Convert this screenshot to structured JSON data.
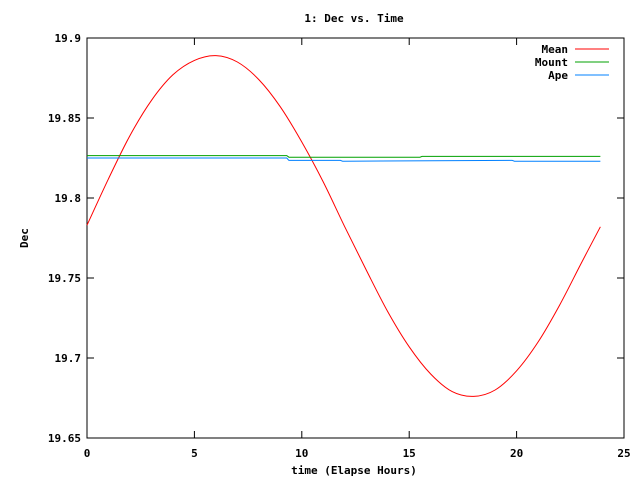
{
  "chart_data": {
    "type": "line",
    "title": "1: Dec vs. Time",
    "xlabel": "time (Elapse Hours)",
    "ylabel": "Dec",
    "xlim": [
      0,
      25
    ],
    "ylim": [
      19.65,
      19.9
    ],
    "xticks": [
      0,
      5,
      10,
      15,
      20,
      25
    ],
    "xtick_labels": [
      "0",
      "5",
      "10",
      "15",
      "20",
      "25"
    ],
    "yticks": [
      19.65,
      19.7,
      19.75,
      19.8,
      19.85,
      19.9
    ],
    "ytick_labels": [
      "19.65",
      "19.7",
      "19.75",
      "19.8",
      "19.85",
      "19.9"
    ],
    "grid": false,
    "legend_position": "top-right",
    "series": [
      {
        "name": "Mean",
        "color": "#ff0000",
        "x": [
          0,
          1,
          2,
          3,
          4,
          5,
          6,
          7,
          8,
          9,
          10,
          11,
          12,
          13,
          14,
          15,
          16,
          17,
          18,
          19,
          20,
          21,
          22,
          23,
          23.9
        ],
        "y": [
          19.783,
          19.812,
          19.839,
          19.861,
          19.877,
          19.886,
          19.889,
          19.885,
          19.874,
          19.857,
          19.835,
          19.81,
          19.782,
          19.755,
          19.729,
          19.707,
          19.69,
          19.679,
          19.676,
          19.68,
          19.692,
          19.71,
          19.733,
          19.759,
          19.782
        ]
      },
      {
        "name": "Mount",
        "color": "#00a000",
        "x": [
          0,
          9.3,
          9.4,
          15.5,
          15.6,
          23.9
        ],
        "y": [
          19.8265,
          19.8265,
          19.8255,
          19.8255,
          19.826,
          19.826
        ]
      },
      {
        "name": "Ape",
        "color": "#0080ff",
        "x": [
          0,
          9.3,
          9.4,
          11.8,
          11.9,
          19.8,
          19.9,
          23.9
        ],
        "y": [
          19.825,
          19.825,
          19.8235,
          19.8235,
          19.823,
          19.8235,
          19.823,
          19.823
        ]
      }
    ]
  }
}
